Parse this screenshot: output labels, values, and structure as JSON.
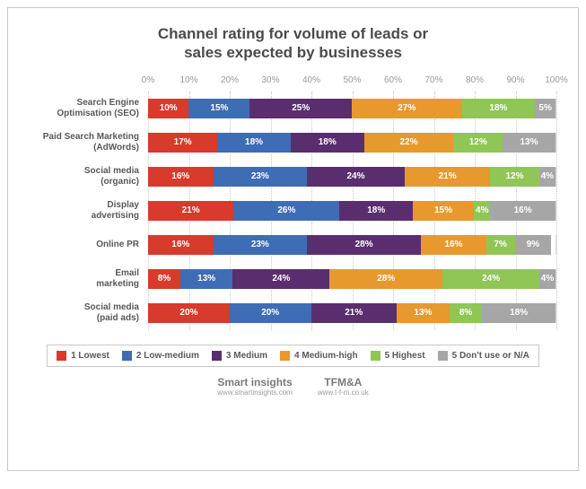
{
  "title_line1": "Channel rating for volume of leads or",
  "title_line2": "sales expected by businesses",
  "title_fontsize": 17,
  "axis_ticks": [
    "0%",
    "10%",
    "20%",
    "30%",
    "40%",
    "50%",
    "60%",
    "70%",
    "80%",
    "90%",
    "100%"
  ],
  "axis_fontsize": 10,
  "label_fontsize": 10,
  "seg_fontsize": 10,
  "legend_fontsize": 10,
  "grid_color": "#c8c8c8",
  "categories": [
    {
      "l1": "Search Engine",
      "l2": "Optimisation (SEO)",
      "values": [
        10,
        15,
        25,
        27,
        18,
        5
      ]
    },
    {
      "l1": "Paid Search Marketing",
      "l2": "(AdWords)",
      "values": [
        17,
        18,
        18,
        22,
        12,
        13
      ]
    },
    {
      "l1": "Social media",
      "l2": "(organic)",
      "values": [
        16,
        23,
        24,
        21,
        12,
        4
      ]
    },
    {
      "l1": "Display",
      "l2": "advertising",
      "values": [
        21,
        26,
        18,
        15,
        4,
        16
      ]
    },
    {
      "l1": "Online PR",
      "l2": "",
      "values": [
        16,
        23,
        28,
        16,
        7,
        9
      ]
    },
    {
      "l1": "Email",
      "l2": "marketing",
      "values": [
        8,
        13,
        24,
        28,
        24,
        4
      ]
    },
    {
      "l1": "Social media",
      "l2": "(paid ads)",
      "values": [
        20,
        20,
        21,
        13,
        8,
        18
      ]
    }
  ],
  "series": [
    {
      "label": "1 Lowest",
      "color": "#d83a2b"
    },
    {
      "label": "2 Low-medium",
      "color": "#3e6db5"
    },
    {
      "label": "3 Medium",
      "color": "#5a2e6e"
    },
    {
      "label": "4 Medium-high",
      "color": "#e8992e"
    },
    {
      "label": "5 Highest",
      "color": "#8fc656"
    },
    {
      "label": "5 Don't use or N/A",
      "color": "#a6a6a6"
    }
  ],
  "footer": [
    {
      "brand": "Smart insights",
      "url": "www.smartinsights.com"
    },
    {
      "brand": "TFM&A",
      "url": "www.t-f-m.co.uk"
    }
  ]
}
